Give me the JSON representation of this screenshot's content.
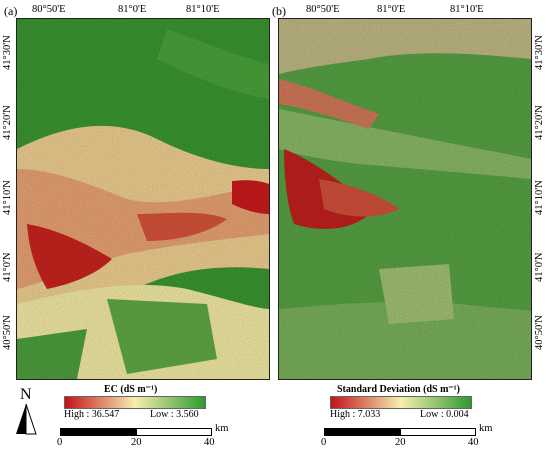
{
  "panels": [
    {
      "label": "(a)",
      "top_ticks": [
        "80°50'E",
        "81°0'E",
        "81°10'E"
      ],
      "left_ticks": [
        "41°30'N",
        "41°20'N",
        "41°10'N",
        "41°0'N",
        "40°50'N"
      ],
      "palette": {
        "low": "#3f9a34",
        "mid": "#f6efb0",
        "high": "#c5121a"
      }
    },
    {
      "label": "(b)",
      "top_ticks": [
        "80°50'E",
        "81°0'E",
        "81°10'E"
      ],
      "right_ticks": [
        "41°30'N",
        "41°20'N",
        "41°10'N",
        "41°0'N",
        "40°50'N"
      ],
      "palette": {
        "low": "#4ea33a",
        "mid": "#f1ebae",
        "high": "#c81b1f"
      }
    }
  ],
  "legend_a": {
    "title": "EC (dS m⁻¹)",
    "high": "High : 36.547",
    "low": "Low : 3.560",
    "colors": [
      "#c4121a",
      "#f6efb0",
      "#2f9a2d"
    ]
  },
  "legend_b": {
    "title": "Standard Deviation (dS m⁻¹)",
    "high": "High : 7.033",
    "low": "Low : 0.004",
    "colors": [
      "#c4121a",
      "#f6efb0",
      "#2f9a2d"
    ]
  },
  "north_arrow": {
    "label": "N"
  },
  "scale_bar_a": {
    "labels": [
      "0",
      "20",
      "40"
    ],
    "unit": "km"
  },
  "scale_bar_b": {
    "labels": [
      "0",
      "20",
      "40"
    ],
    "unit": "km"
  }
}
